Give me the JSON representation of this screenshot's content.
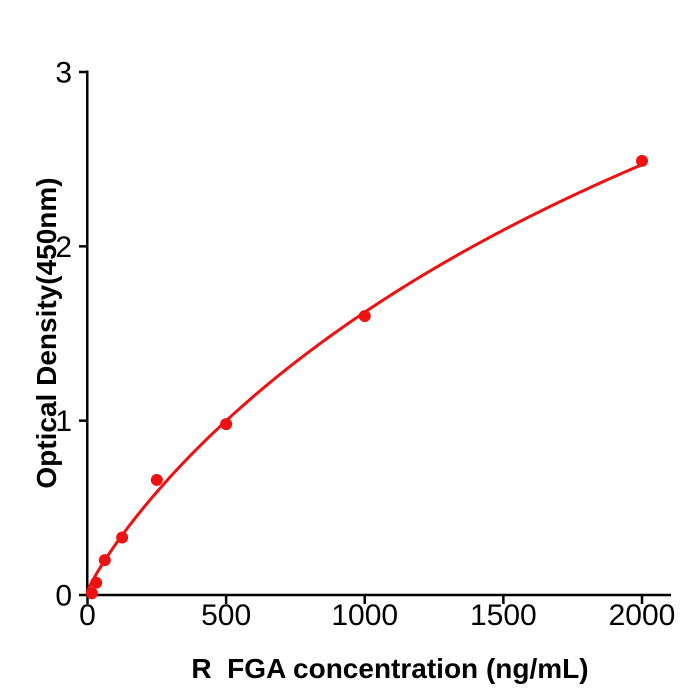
{
  "figure": {
    "background": "#ffffff"
  },
  "chart_data": {
    "type": "scatter",
    "title": "",
    "xlabel": "R  FGA concentration (ng/mL)",
    "ylabel": "Optical Density(450nm)",
    "x": [
      15.625,
      31.25,
      62.5,
      125,
      250,
      500,
      1000,
      2000
    ],
    "y": [
      0.01,
      0.07,
      0.2,
      0.33,
      0.66,
      0.98,
      1.6,
      2.49
    ],
    "xticks": [
      0,
      500,
      1000,
      1500,
      2000
    ],
    "yticks": [
      0,
      1,
      2,
      3
    ],
    "xlim": [
      0,
      2105
    ],
    "ylim": [
      0,
      3
    ],
    "grid": false,
    "legend_position": "none",
    "marker_color": "#ee1111",
    "line_color": "#ee1111",
    "axis_color": "#000000",
    "fit_curve": {
      "type": "4PL",
      "formula": "y = y0 + (ymax-y0)*((x/c)^b)/(1+(x/c)^b)",
      "y0": 0.02,
      "ymax": 6.61,
      "c": 3634,
      "b": 0.88,
      "x_range": [
        0,
        2000
      ]
    }
  }
}
